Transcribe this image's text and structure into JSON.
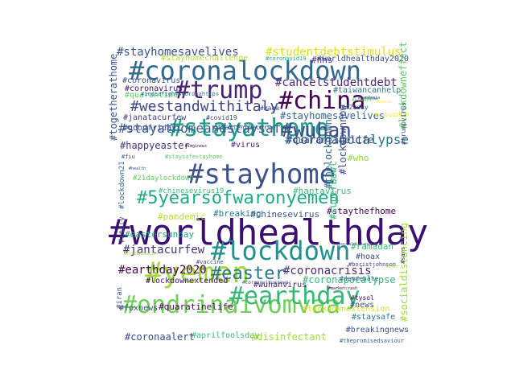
{
  "words": [
    {
      "text": "#worldhealthday",
      "color": "#3b0f70"
    },
    {
      "text": "#coronalockdown",
      "color": "#31688e"
    },
    {
      "text": "#stayhome",
      "color": "#3b528b"
    },
    {
      "text": "#stayathome",
      "color": "#1f9e89"
    },
    {
      "text": "#ondrinaivomvaa",
      "color": "#6ece58"
    },
    {
      "text": "#lockdown",
      "color": "#21918c"
    },
    {
      "text": "#earthday",
      "color": "#35b779"
    },
    {
      "text": "#5yearsofwaronyemen",
      "color": "#22a884"
    },
    {
      "text": "#yemen",
      "color": "#a0da39"
    },
    {
      "text": "#china",
      "color": "#440154"
    },
    {
      "text": "#trump",
      "color": "#482475"
    },
    {
      "text": "#wuhan",
      "color": "#3e4989"
    },
    {
      "text": "#easter",
      "color": "#2a788e"
    },
    {
      "text": "#westandwithitaly",
      "color": "#414487"
    },
    {
      "text": "#stayathomeandstaysafe",
      "color": "#355f8d"
    },
    {
      "text": "#cancelstudentdebt",
      "color": "#482878"
    },
    {
      "text": "#stayhomesavelives",
      "color": "#3b528b"
    },
    {
      "text": "#studentdebtstimulus",
      "color": "#d8e219"
    },
    {
      "text": "#coronacrisis",
      "color": "#472d7b"
    },
    {
      "text": "#jantacurfew",
      "color": "#46327e"
    },
    {
      "text": "#earthday2020",
      "color": "#440154"
    },
    {
      "text": "#coronapocalypse",
      "color": "#2c728e"
    },
    {
      "text": "#stayhomesavelives",
      "color": "#33638d"
    },
    {
      "text": "#coronavirus",
      "color": "#3b528b"
    },
    {
      "text": "#goodfriday",
      "color": "#3e4989"
    },
    {
      "text": "#janatacurfew",
      "color": "#443983"
    },
    {
      "text": "#happyeaster",
      "color": "#46337f"
    },
    {
      "text": "#quarantinelife",
      "color": "#404688"
    },
    {
      "text": "#stayhomechallenge",
      "color": "#b5de2b"
    },
    {
      "text": "#quarantine",
      "color": "#5ec962"
    },
    {
      "text": "#coronavirus",
      "color": "#3b0f70"
    },
    {
      "text": "#worldhealthday2020",
      "color": "#3b528b"
    },
    {
      "text": "#nhs",
      "color": "#472a7a"
    },
    {
      "text": "#taiwancanhelp",
      "color": "#2d708e"
    },
    {
      "text": "#covid19",
      "color": "#414487"
    },
    {
      "text": "#maga",
      "color": "#3b528b"
    },
    {
      "text": "#420day",
      "color": "#31688e"
    },
    {
      "text": "#who",
      "color": "#8fd744"
    },
    {
      "text": "#coronavid19",
      "color": "#1f9e89"
    },
    {
      "text": "#indiafightscoronahttps",
      "color": "#2a788e"
    },
    {
      "text": "#flattenthecurve",
      "color": "#34618d"
    },
    {
      "text": "#virus",
      "color": "#482878"
    },
    {
      "text": "#21daylockdown",
      "color": "#5ec962"
    },
    {
      "text": "#chinesevirus19",
      "color": "#3aba76"
    },
    {
      "text": "#hantavirus",
      "color": "#3aba76"
    },
    {
      "text": "#chinesevirus",
      "color": "#3b528b"
    },
    {
      "text": "#staythefhome",
      "color": "#440154"
    },
    {
      "text": "#pandemic",
      "color": "#b5de2b"
    },
    {
      "text": "#breaking",
      "color": "#2a788e"
    },
    {
      "text": "#ramadan",
      "color": "#3aba76"
    },
    {
      "text": "#eastersunday",
      "color": "#20a386"
    },
    {
      "text": "#hoax",
      "color": "#3e4989"
    },
    {
      "text": "#boristjohnson",
      "color": "#46337f"
    },
    {
      "text": "#vaccine",
      "color": "#3e4989"
    },
    {
      "text": "#lockdownextended",
      "color": "#471063"
    },
    {
      "text": "#wuhanvirus",
      "color": "#482475"
    },
    {
      "text": "#coronapocalypse",
      "color": "#35b779"
    },
    {
      "text": "#demdebate",
      "color": "#31688e"
    },
    {
      "text": "#quaratinelife",
      "color": "#440154"
    },
    {
      "text": "#foxnews",
      "color": "#3e4989"
    },
    {
      "text": "#lockdownextension",
      "color": "#d8e219"
    },
    {
      "text": "#news",
      "color": "#3b528b"
    },
    {
      "text": "#staysafe",
      "color": "#2a788e"
    },
    {
      "text": "#breakingnews",
      "color": "#3b528b"
    },
    {
      "text": "#coronaalert",
      "color": "#3e4989"
    },
    {
      "text": "#aprilfoolsday",
      "color": "#3aba76"
    },
    {
      "text": "#disinfectant",
      "color": "#a0da39"
    },
    {
      "text": "#thepromisedsaviour",
      "color": "#31688e"
    },
    {
      "text": "#togetherathome",
      "color": "#3b528b",
      "rot": true
    },
    {
      "text": "#lockdownnow",
      "color": "#3e4989",
      "rot": true
    },
    {
      "text": "#thelockdown",
      "color": "#31688e",
      "rot": true
    },
    {
      "text": "#superbowl",
      "color": "#35b779",
      "rot": true
    },
    {
      "text": "#lockdowneffect",
      "color": "#5ec962",
      "rot": true
    },
    {
      "text": "#socialdistancing",
      "color": "#a0da39",
      "rot": true
    },
    {
      "text": "#lockdown21",
      "color": "#31688e",
      "rot": true
    },
    {
      "text": "#iran",
      "color": "#3b528b",
      "rot": true
    },
    {
      "text": "#italy",
      "color": "#3e4989",
      "rot": true
    },
    {
      "text": "#fiu",
      "color": "#3b528b"
    },
    {
      "text": "#sars",
      "color": "#46337f",
      "rot": true
    },
    {
      "text": "#dubai",
      "color": "#21918c"
    },
    {
      "text": "#health",
      "color": "#3b528b"
    },
    {
      "text": "#staysafestayhome",
      "color": "#5ec962"
    },
    {
      "text": "#imginews",
      "color": "#440154"
    },
    {
      "text": "#covid2019",
      "color": "#fde725"
    },
    {
      "text": "#pandemia",
      "color": "#3e4989"
    },
    {
      "text": "#trumpvirus",
      "color": "#3b528b",
      "rot": true
    },
    {
      "text": "#kuwait",
      "color": "#6ece58"
    },
    {
      "text": "#fridaythe13th",
      "color": "#a0da39"
    },
    {
      "text": "#socialdistancing",
      "color": "#3b528b"
    },
    {
      "text": "#coronavirusnews",
      "color": "#3e4989"
    },
    {
      "text": "#marketcrash",
      "color": "#440154"
    },
    {
      "text": "#tysol",
      "color": "#440154"
    },
    {
      "text": "#covid",
      "color": "#fde725"
    },
    {
      "text": "#ksmr",
      "color": "#a0da39"
    }
  ]
}
